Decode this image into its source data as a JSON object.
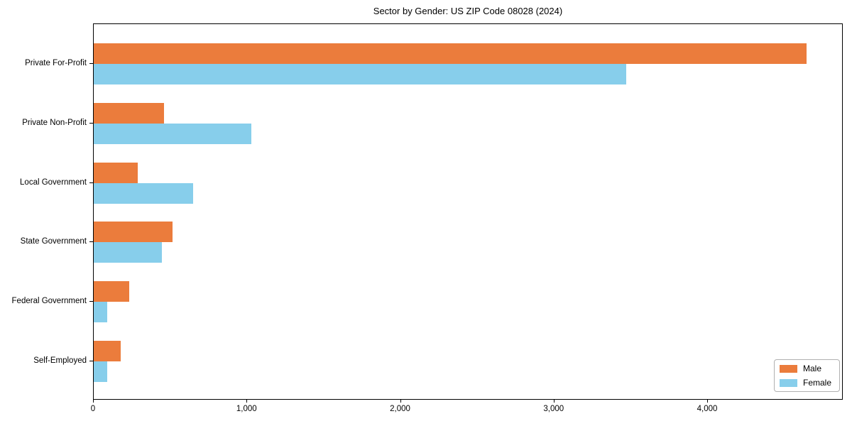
{
  "chart_data": {
    "type": "bar",
    "orientation": "horizontal",
    "title": "Sector by Gender: US ZIP Code 08028 (2024)",
    "categories": [
      "Private For-Profit",
      "Private Non-Profit",
      "Local Government",
      "State Government",
      "Federal Government",
      "Self-Employed"
    ],
    "series": [
      {
        "name": "Male",
        "color": "#EB7C3C",
        "values": [
          4650,
          460,
          285,
          515,
          230,
          175
        ]
      },
      {
        "name": "Female",
        "color": "#87CEEB",
        "values": [
          3475,
          1030,
          650,
          445,
          90,
          90
        ]
      }
    ],
    "xlim": [
      0,
      4883
    ],
    "x_ticks": [
      0,
      1000,
      2000,
      3000,
      4000
    ],
    "x_tick_labels": [
      "0",
      "1,000",
      "2,000",
      "3,000",
      "4,000"
    ],
    "xlabel": "",
    "ylabel": "",
    "grid": false,
    "legend": {
      "position": "lower right",
      "entries": [
        "Male",
        "Female"
      ]
    }
  }
}
